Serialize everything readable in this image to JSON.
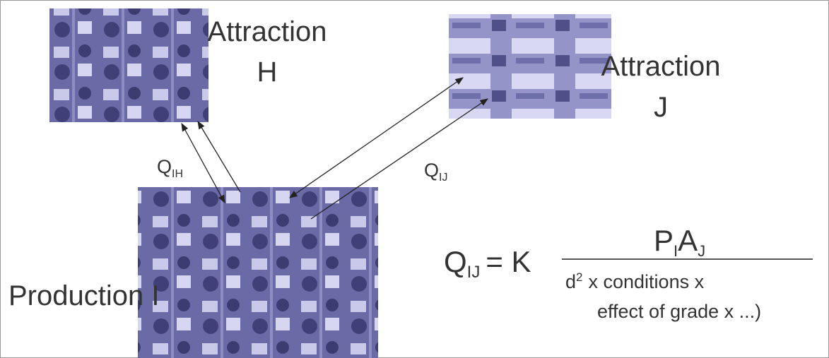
{
  "nodes": [
    {
      "label": "Attraction",
      "sublabel": "H"
    },
    {
      "label": "Attraction",
      "sublabel": "J"
    },
    {
      "label": "Production I"
    }
  ],
  "flows": [
    {
      "symbol": "Q",
      "subscript": "IH"
    },
    {
      "symbol": "Q",
      "subscript": "IJ"
    }
  ],
  "formula": {
    "lhs": "Q",
    "lhs_sub": "IJ",
    "equals": "= K",
    "numerator": [
      {
        "text": "P",
        "sub": "I"
      },
      {
        "text": "A",
        "sub": "J"
      }
    ],
    "denominator_base": "d",
    "denominator_sup": "2",
    "denominator_rest": "x conditions x",
    "denominator_line2": "effect of grade x ...)"
  }
}
